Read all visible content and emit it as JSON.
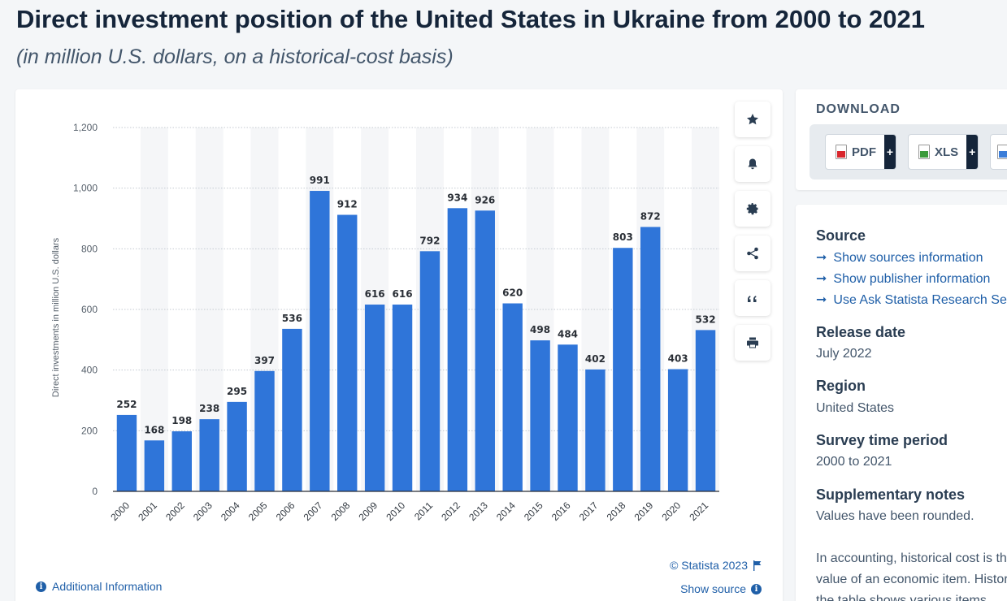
{
  "header": {
    "title": "Direct investment position of the United States in Ukraine from 2000 to 2021",
    "subtitle": "(in million U.S. dollars, on a historical-cost basis)"
  },
  "chart_data": {
    "type": "bar",
    "categories": [
      "2000",
      "2001",
      "2002",
      "2003",
      "2004",
      "2005",
      "2006",
      "2007",
      "2008",
      "2009",
      "2010",
      "2011",
      "2012",
      "2013",
      "2014",
      "2015",
      "2016",
      "2017",
      "2018",
      "2019",
      "2020",
      "2021"
    ],
    "values": [
      252,
      168,
      198,
      238,
      295,
      397,
      536,
      991,
      912,
      616,
      616,
      792,
      934,
      926,
      620,
      498,
      484,
      402,
      803,
      872,
      403,
      532
    ],
    "ylabel": "Direct investments in million U.S. dollars",
    "xlabel": "",
    "ylim": [
      0,
      1200
    ],
    "yticks": [
      0,
      200,
      400,
      600,
      800,
      1000,
      1200
    ],
    "ytick_labels": [
      "0",
      "200",
      "400",
      "600",
      "800",
      "1,000",
      "1,200"
    ],
    "grid": true,
    "bar_color": "#2f75d9"
  },
  "chart_footer": {
    "credit": "© Statista 2023",
    "show_source": "Show source",
    "additional_info": "Additional Information"
  },
  "toolbar": {
    "icons": [
      "star-icon",
      "bell-icon",
      "gear-icon",
      "share-icon",
      "quote-icon",
      "print-icon"
    ]
  },
  "download": {
    "title": "DOWNLOAD",
    "buttons": [
      {
        "label": "PDF",
        "color": "#d9262c"
      },
      {
        "label": "XLS",
        "color": "#3a9a3a"
      }
    ]
  },
  "info": {
    "source_heading": "Source",
    "links": [
      "Show sources information",
      "Show publisher information",
      "Use Ask Statista Research Service"
    ],
    "release_heading": "Release date",
    "release_value": "July 2022",
    "region_heading": "Region",
    "region_value": "United States",
    "survey_heading": "Survey time period",
    "survey_value": "2000 to 2021",
    "notes_heading": "Supplementary notes",
    "notes_value": "Values have been rounded.",
    "notes_line1": "In accounting, historical cost is the original",
    "notes_line2": "value of an economic item. Historical cost",
    "notes_line3": "the table shows various items"
  }
}
